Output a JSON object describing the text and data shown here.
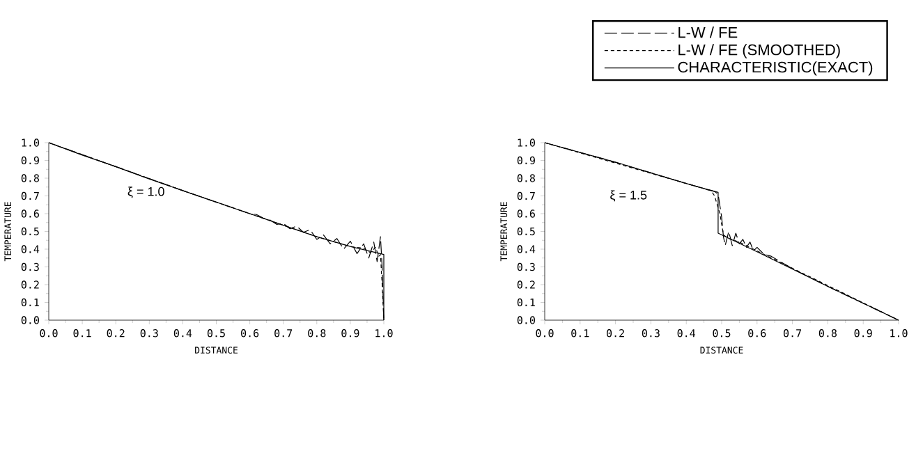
{
  "chart_data": [
    {
      "type": "line",
      "xlabel": "DISTANCE",
      "ylabel": "TEMPERATURE",
      "annotations": [
        "ξ  = 1.0"
      ],
      "xlim": [
        0,
        1
      ],
      "ylim": [
        0,
        1
      ],
      "xticks": [
        {
          "value": 0,
          "label": "0.0"
        },
        {
          "value": 0.1,
          "label": "0.1"
        },
        {
          "value": 0.2,
          "label": "0.2"
        },
        {
          "value": 0.3,
          "label": "0.3"
        },
        {
          "value": 0.4,
          "label": "0.4"
        },
        {
          "value": 0.5,
          "label": "0.5"
        },
        {
          "value": 0.6,
          "label": "0.6"
        },
        {
          "value": 0.7,
          "label": "0.7"
        },
        {
          "value": 0.8,
          "label": "0.8"
        },
        {
          "value": 0.9,
          "label": "0.9"
        },
        {
          "value": 1,
          "label": "1.0"
        }
      ],
      "yticks": [
        {
          "value": 0,
          "label": "0.0"
        },
        {
          "value": 0.1,
          "label": "0.1"
        },
        {
          "value": 0.2,
          "label": "0.2"
        },
        {
          "value": 0.3,
          "label": "0.3"
        },
        {
          "value": 0.4,
          "label": "0.4"
        },
        {
          "value": 0.5,
          "label": "0.5"
        },
        {
          "value": 0.6,
          "label": "0.6"
        },
        {
          "value": 0.7,
          "label": "0.7"
        },
        {
          "value": 0.8,
          "label": "0.8"
        },
        {
          "value": 0.9,
          "label": "0.9"
        },
        {
          "value": 1,
          "label": "1.0"
        }
      ],
      "series": [
        {
          "color": "#000000",
          "line_style": "dashed",
          "x": [
            0,
            0.2,
            0.4,
            0.6,
            0.62,
            0.64,
            0.66,
            0.68,
            0.7,
            0.72,
            0.74,
            0.76,
            0.78,
            0.8,
            0.82,
            0.84,
            0.86,
            0.88,
            0.9,
            0.92,
            0.94,
            0.955,
            0.97,
            0.98,
            0.99,
            0.995,
            1.0
          ],
          "values": [
            1,
            0.865,
            0.73,
            0.6,
            0.595,
            0.575,
            0.565,
            0.54,
            0.545,
            0.515,
            0.53,
            0.495,
            0.51,
            0.455,
            0.48,
            0.43,
            0.46,
            0.4,
            0.445,
            0.375,
            0.43,
            0.35,
            0.44,
            0.33,
            0.47,
            0.3,
            0.0
          ]
        },
        {
          "color": "#000000",
          "line_style": "dashed",
          "x": [
            0,
            0.2,
            0.4,
            0.6,
            0.8,
            0.9,
            0.94,
            0.96,
            0.975,
            0.985,
            0.99,
            0.995,
            1.0
          ],
          "values": [
            1,
            0.865,
            0.73,
            0.6,
            0.47,
            0.415,
            0.405,
            0.38,
            0.41,
            0.36,
            0.37,
            0.2,
            0.0
          ]
        },
        {
          "color": "#000000",
          "line_style": "solid",
          "x": [
            0,
            0.1,
            0.2,
            0.3,
            0.4,
            0.5,
            0.6,
            0.7,
            0.8,
            0.9,
            1.0,
            1.0
          ],
          "values": [
            1,
            0.93,
            0.865,
            0.795,
            0.73,
            0.665,
            0.6,
            0.535,
            0.47,
            0.415,
            0.37,
            0.0
          ]
        }
      ]
    },
    {
      "type": "line",
      "xlabel": "DISTANCE",
      "ylabel": "TEMPERATURE",
      "annotations": [
        "ξ = 1.5"
      ],
      "legend": "top right",
      "xlim": [
        0,
        1
      ],
      "ylim": [
        0,
        1
      ],
      "xticks": [
        {
          "value": 0,
          "label": "0.0"
        },
        {
          "value": 0.1,
          "label": "0.1"
        },
        {
          "value": 0.2,
          "label": "0.2"
        },
        {
          "value": 0.3,
          "label": "0.3"
        },
        {
          "value": 0.4,
          "label": "0.4"
        },
        {
          "value": 0.5,
          "label": "0.5"
        },
        {
          "value": 0.6,
          "label": "0.6"
        },
        {
          "value": 0.7,
          "label": "0.7"
        },
        {
          "value": 0.8,
          "label": "0.8"
        },
        {
          "value": 0.9,
          "label": "0.9"
        },
        {
          "value": 1,
          "label": "1.0"
        }
      ],
      "yticks": [
        {
          "value": 0,
          "label": "0.0"
        },
        {
          "value": 0.1,
          "label": "0.1"
        },
        {
          "value": 0.2,
          "label": "0.2"
        },
        {
          "value": 0.3,
          "label": "0.3"
        },
        {
          "value": 0.4,
          "label": "0.4"
        },
        {
          "value": 0.5,
          "label": "0.5"
        },
        {
          "value": 0.6,
          "label": "0.6"
        },
        {
          "value": 0.7,
          "label": "0.7"
        },
        {
          "value": 0.8,
          "label": "0.8"
        },
        {
          "value": 0.9,
          "label": "0.9"
        },
        {
          "value": 1,
          "label": "1.0"
        }
      ],
      "series": [
        {
          "name": "L-W / FE",
          "color": "#000000",
          "line_style": "dashed",
          "x": [
            0,
            0.2,
            0.4,
            0.46,
            0.48,
            0.49,
            0.5,
            0.505,
            0.51,
            0.52,
            0.53,
            0.54,
            0.55,
            0.56,
            0.57,
            0.58,
            0.59,
            0.6,
            0.62,
            0.64,
            0.7,
            0.8,
            1.0
          ],
          "values": [
            1,
            0.89,
            0.77,
            0.735,
            0.725,
            0.71,
            0.58,
            0.47,
            0.42,
            0.5,
            0.42,
            0.49,
            0.43,
            0.455,
            0.41,
            0.44,
            0.39,
            0.41,
            0.37,
            0.36,
            0.29,
            0.19,
            0.0
          ]
        },
        {
          "name": "L-W / FE (SMOOTHED)",
          "color": "#000000",
          "line_style": "dashed",
          "x": [
            0,
            0.4,
            0.47,
            0.48,
            0.495,
            0.505,
            0.52,
            0.55,
            0.6,
            1.0
          ],
          "values": [
            1,
            0.77,
            0.73,
            0.7,
            0.6,
            0.48,
            0.46,
            0.44,
            0.39,
            0.0
          ]
        },
        {
          "name": "CHARACTERISTIC(EXACT)",
          "color": "#000000",
          "line_style": "solid",
          "x": [
            0,
            0.2,
            0.4,
            0.49,
            0.49,
            0.6,
            0.8,
            1.0
          ],
          "values": [
            1,
            0.89,
            0.77,
            0.72,
            0.49,
            0.385,
            0.19,
            0.0
          ]
        }
      ]
    }
  ]
}
